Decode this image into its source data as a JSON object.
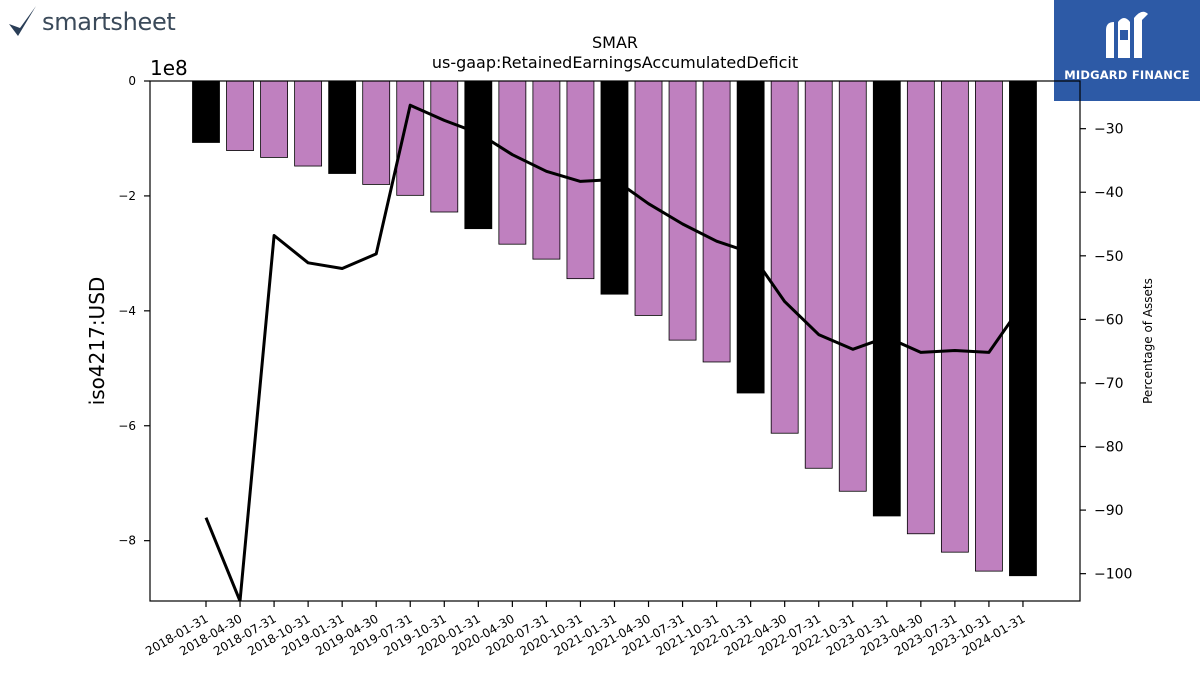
{
  "logos": {
    "left_text": "smartsheet",
    "right_text": "MIDGARD FINANCE"
  },
  "colors": {
    "bar_primary": "#000000",
    "bar_secondary": "#bf80bf",
    "line": "#000000",
    "logo_right_bg": "#2d5aa6"
  },
  "chart_data": {
    "type": "bar",
    "title": "SMAR",
    "subtitle": "us-gaap:RetainedEarningsAccumulatedDeficit",
    "ylabel": "iso4217:USD",
    "y2label": "Percentage of Assets",
    "y_scale_label": "1e8",
    "ylim": [
      -9.05,
      0
    ],
    "y2lim": [
      -104.3,
      -22.5
    ],
    "yticks": [
      "0",
      "−2",
      "−4",
      "−6",
      "−8"
    ],
    "yticks_values": [
      0,
      -2,
      -4,
      -6,
      -8
    ],
    "y2ticks": [
      "−30",
      "−40",
      "−50",
      "−60",
      "−70",
      "−80",
      "−90",
      "−100"
    ],
    "y2ticks_values": [
      -30,
      -40,
      -50,
      -60,
      -70,
      -80,
      -90,
      -100
    ],
    "categories": [
      "2018-01-31",
      "2018-04-30",
      "2018-07-31",
      "2018-10-31",
      "2019-01-31",
      "2019-04-30",
      "2019-07-31",
      "2019-10-31",
      "2020-01-31",
      "2020-04-30",
      "2020-07-31",
      "2020-10-31",
      "2021-01-31",
      "2021-04-30",
      "2021-07-31",
      "2021-10-31",
      "2022-01-31",
      "2022-04-30",
      "2022-07-31",
      "2022-10-31",
      "2023-01-31",
      "2023-04-30",
      "2023-07-31",
      "2023-10-31",
      "2024-01-31"
    ],
    "series": [
      {
        "role": "bars",
        "values": [
          -1.07,
          -1.21,
          -1.33,
          -1.48,
          -1.61,
          -1.8,
          -1.99,
          -2.28,
          -2.57,
          -2.84,
          -3.1,
          -3.44,
          -3.71,
          -4.08,
          -4.51,
          -4.89,
          -5.43,
          -6.13,
          -6.74,
          -7.14,
          -7.57,
          -7.88,
          -8.2,
          -8.53,
          -8.61
        ],
        "highlight": [
          true,
          false,
          false,
          false,
          true,
          false,
          false,
          false,
          true,
          false,
          false,
          false,
          true,
          false,
          false,
          false,
          true,
          false,
          false,
          false,
          true,
          false,
          false,
          false,
          true
        ]
      },
      {
        "role": "line",
        "axis": "right",
        "values": [
          -91.2,
          -104.3,
          -46.8,
          -51.1,
          -52.0,
          -49.7,
          -26.3,
          -28.7,
          -30.7,
          -34.1,
          -36.7,
          -38.3,
          -38.0,
          -41.8,
          -45.0,
          -47.7,
          -49.5,
          -57.2,
          -62.4,
          -64.7,
          -62.8,
          -65.2,
          -64.9,
          -65.2,
          -57.5
        ]
      }
    ],
    "grid": false,
    "legend": "none"
  }
}
